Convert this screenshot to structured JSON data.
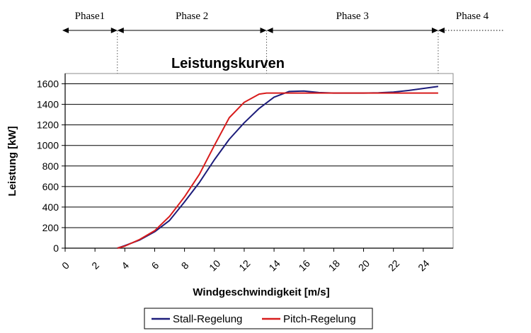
{
  "chart_data": {
    "type": "line",
    "title": "Leistungskurven",
    "xlabel": "Windgeschwindigkeit [m/s]",
    "ylabel": "Leistung [kW]",
    "xlim": [
      0,
      26
    ],
    "ylim": [
      0,
      1700
    ],
    "x_ticks": [
      "0",
      "2",
      "4",
      "6",
      "8",
      "10",
      "12",
      "14",
      "16",
      "18",
      "20",
      "22",
      "24"
    ],
    "y_ticks": [
      "0",
      "200",
      "400",
      "600",
      "800",
      "1000",
      "1200",
      "1400",
      "1600"
    ],
    "grid": "horizontal",
    "legend_position": "bottom",
    "series": [
      {
        "name": "Stall-Regelung",
        "color": "#1c1c7a",
        "x": [
          3.5,
          4,
          5,
          6,
          7,
          8,
          9,
          10,
          11,
          12,
          13,
          14,
          15,
          16,
          17,
          18,
          19,
          20,
          21,
          22,
          23,
          24,
          25
        ],
        "y": [
          0,
          25,
          80,
          160,
          270,
          450,
          640,
          860,
          1060,
          1220,
          1360,
          1470,
          1525,
          1530,
          1515,
          1510,
          1510,
          1510,
          1512,
          1520,
          1535,
          1555,
          1575
        ]
      },
      {
        "name": "Pitch-Regelung",
        "color": "#d81c1c",
        "x": [
          3.5,
          4,
          5,
          6,
          7,
          8,
          9,
          10,
          11,
          12,
          13,
          13.5,
          14,
          16,
          18,
          20,
          22,
          24,
          25
        ],
        "y": [
          0,
          20,
          85,
          170,
          310,
          500,
          720,
          1000,
          1270,
          1420,
          1500,
          1510,
          1510,
          1510,
          1510,
          1510,
          1510,
          1510,
          1510
        ]
      }
    ],
    "phases": [
      {
        "label": "Phase1",
        "x_start": 0,
        "x_end": 3.5
      },
      {
        "label": "Phase 2",
        "x_start": 3.5,
        "x_end": 13.5
      },
      {
        "label": "Phase 3",
        "x_start": 13.5,
        "x_end": 25
      },
      {
        "label": "Phase 4",
        "x_start": 25,
        "x_end": 26
      }
    ]
  }
}
